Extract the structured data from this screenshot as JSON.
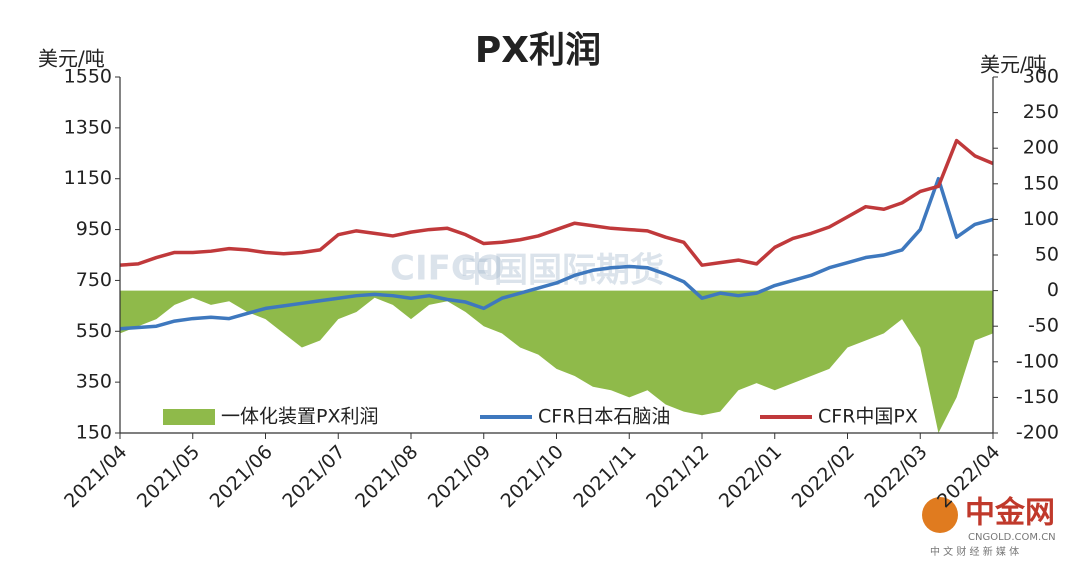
{
  "chart_data": {
    "type": "line",
    "title": "PX利润",
    "y_label": "美元/吨",
    "y2_label": "美元/吨",
    "x": [
      "2021/04",
      null,
      null,
      null,
      "2021/05",
      null,
      null,
      null,
      "2021/06",
      null,
      null,
      null,
      "2021/07",
      null,
      null,
      null,
      "2021/08",
      null,
      null,
      null,
      "2021/09",
      null,
      null,
      null,
      "2021/10",
      null,
      null,
      null,
      "2021/11",
      null,
      null,
      null,
      "2021/12",
      null,
      null,
      null,
      "2022/01",
      null,
      null,
      null,
      "2022/02",
      null,
      null,
      null,
      "2022/03",
      null,
      null,
      null,
      "2022/04"
    ],
    "series": [
      {
        "name": "一体化装置PX利润",
        "type": "area",
        "axis": "y2",
        "color": "#8fba4a",
        "values": [
          -60,
          -50,
          -40,
          -20,
          -10,
          -20,
          -15,
          -30,
          -40,
          -60,
          -80,
          -70,
          -40,
          -30,
          -10,
          -20,
          -40,
          -20,
          -15,
          -30,
          -50,
          -60,
          -80,
          -90,
          -110,
          -120,
          -135,
          -140,
          -150,
          -140,
          -160,
          -170,
          -175,
          -170,
          -140,
          -130,
          -140,
          -130,
          -120,
          -110,
          -80,
          -70,
          -60,
          -40,
          -80,
          -200,
          -150,
          -70,
          -60
        ]
      },
      {
        "name": "CFR日本石脑油",
        "type": "line",
        "color": "#3e78be",
        "values": [
          560,
          565,
          570,
          590,
          600,
          605,
          600,
          620,
          640,
          650,
          660,
          670,
          680,
          690,
          695,
          690,
          680,
          690,
          675,
          665,
          640,
          680,
          700,
          720,
          740,
          770,
          790,
          800,
          805,
          800,
          775,
          745,
          680,
          700,
          690,
          700,
          730,
          750,
          770,
          800,
          820,
          840,
          850,
          870,
          950,
          1150,
          920,
          970,
          990
        ]
      },
      {
        "name": "CFR中国PX",
        "type": "line",
        "color": "#c0393b",
        "values": [
          810,
          815,
          840,
          860,
          860,
          865,
          875,
          870,
          860,
          855,
          860,
          870,
          930,
          945,
          935,
          925,
          940,
          950,
          955,
          930,
          895,
          900,
          910,
          925,
          950,
          975,
          965,
          955,
          950,
          945,
          920,
          900,
          810,
          820,
          830,
          815,
          880,
          915,
          935,
          960,
          1000,
          1040,
          1030,
          1055,
          1100,
          1120,
          1300,
          1240,
          1210
        ]
      }
    ],
    "ylim": [
      150,
      1550
    ],
    "yticks": [
      150,
      350,
      550,
      750,
      950,
      1150,
      1350,
      1550
    ],
    "y2lim": [
      -200,
      300
    ],
    "y2ticks": [
      -200,
      -150,
      -100,
      -50,
      0,
      50,
      100,
      150,
      200,
      250,
      300
    ],
    "grid": false,
    "legend": "bottom",
    "watermark": "中国国际期货",
    "watermark_logo": "CIFCO",
    "brand": "中金网",
    "brand_site": "CNGOLD.COM.CN",
    "brand_slogan": "中 文 财 经 新 媒 体"
  }
}
